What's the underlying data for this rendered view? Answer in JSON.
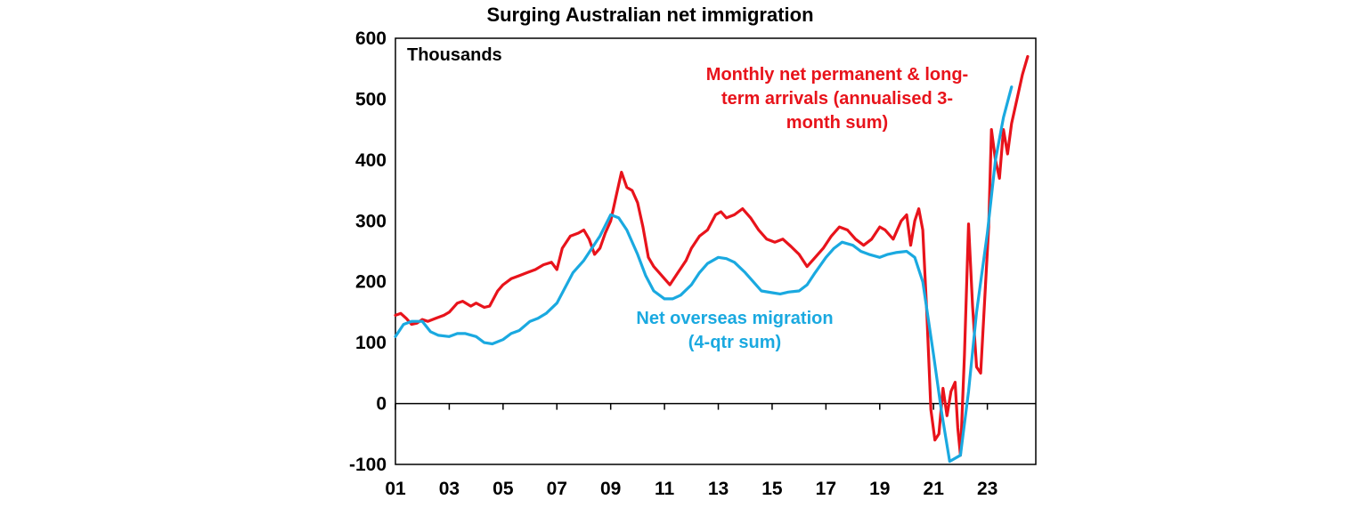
{
  "chart_data": {
    "type": "line",
    "title": "Surging Australian net immigration",
    "unit_label": "Thousands",
    "xlabel": "",
    "ylabel": "",
    "xlim": [
      2001.0,
      2024.8
    ],
    "ylim": [
      -100,
      600
    ],
    "y_ticks": [
      600,
      500,
      400,
      300,
      200,
      100,
      0,
      -100
    ],
    "x_ticks": [
      {
        "year": 2001,
        "label": "01"
      },
      {
        "year": 2003,
        "label": "03"
      },
      {
        "year": 2005,
        "label": "05"
      },
      {
        "year": 2007,
        "label": "07"
      },
      {
        "year": 2009,
        "label": "09"
      },
      {
        "year": 2011,
        "label": "11"
      },
      {
        "year": 2013,
        "label": "13"
      },
      {
        "year": 2015,
        "label": "15"
      },
      {
        "year": 2017,
        "label": "17"
      },
      {
        "year": 2019,
        "label": "19"
      },
      {
        "year": 2021,
        "label": "21"
      },
      {
        "year": 2023,
        "label": "23"
      }
    ],
    "grid": false,
    "series": [
      {
        "name": "Monthly net permanent & long-term arrivals (annualised 3-month sum)",
        "label_lines": [
          "Monthly net permanent & long-",
          "term arrivals (annualised 3-",
          "month sum)"
        ],
        "color": "#e8131b",
        "x": [
          2001.0,
          2001.2,
          2001.4,
          2001.6,
          2001.8,
          2002.0,
          2002.2,
          2002.5,
          2002.8,
          2003.0,
          2003.3,
          2003.5,
          2003.8,
          2004.0,
          2004.3,
          2004.5,
          2004.8,
          2005.0,
          2005.3,
          2005.6,
          2005.9,
          2006.2,
          2006.5,
          2006.8,
          2007.0,
          2007.2,
          2007.5,
          2007.8,
          2008.0,
          2008.2,
          2008.4,
          2008.6,
          2008.8,
          2009.0,
          2009.2,
          2009.4,
          2009.6,
          2009.8,
          2010.0,
          2010.2,
          2010.4,
          2010.6,
          2010.8,
          2011.0,
          2011.2,
          2011.5,
          2011.8,
          2012.0,
          2012.3,
          2012.6,
          2012.9,
          2013.1,
          2013.3,
          2013.6,
          2013.9,
          2014.2,
          2014.5,
          2014.8,
          2015.1,
          2015.4,
          2015.7,
          2016.0,
          2016.3,
          2016.6,
          2016.9,
          2017.2,
          2017.5,
          2017.8,
          2018.1,
          2018.4,
          2018.7,
          2019.0,
          2019.2,
          2019.5,
          2019.8,
          2020.0,
          2020.15,
          2020.3,
          2020.45,
          2020.6,
          2020.75,
          2020.9,
          2021.05,
          2021.2,
          2021.35,
          2021.5,
          2021.65,
          2021.8,
          2021.9,
          2022.0,
          2022.15,
          2022.3,
          2022.45,
          2022.6,
          2022.75,
          2022.9,
          2023.05,
          2023.15,
          2023.3,
          2023.45,
          2023.6,
          2023.75,
          2023.9,
          2024.1,
          2024.3,
          2024.5
        ],
        "y": [
          145,
          148,
          140,
          130,
          132,
          138,
          135,
          140,
          145,
          150,
          165,
          168,
          160,
          165,
          158,
          160,
          185,
          195,
          205,
          210,
          215,
          220,
          228,
          232,
          220,
          255,
          275,
          280,
          285,
          270,
          245,
          255,
          280,
          300,
          340,
          380,
          355,
          350,
          330,
          290,
          240,
          225,
          215,
          205,
          195,
          215,
          235,
          255,
          275,
          285,
          310,
          315,
          305,
          310,
          320,
          305,
          285,
          270,
          265,
          270,
          258,
          245,
          225,
          240,
          255,
          275,
          290,
          285,
          270,
          260,
          270,
          290,
          285,
          270,
          300,
          310,
          260,
          300,
          320,
          285,
          150,
          -10,
          -60,
          -50,
          25,
          -20,
          20,
          35,
          -40,
          -85,
          80,
          295,
          160,
          60,
          50,
          170,
          290,
          450,
          400,
          370,
          450,
          410,
          460,
          500,
          540,
          570
        ]
      },
      {
        "name": "Net overseas migration (4-qtr sum)",
        "label_lines": [
          "Net overseas migration",
          "(4-qtr sum)"
        ],
        "color": "#1aa9e0",
        "x": [
          2001.0,
          2001.3,
          2001.6,
          2002.0,
          2002.3,
          2002.6,
          2003.0,
          2003.3,
          2003.6,
          2004.0,
          2004.3,
          2004.6,
          2005.0,
          2005.3,
          2005.6,
          2006.0,
          2006.3,
          2006.6,
          2007.0,
          2007.3,
          2007.6,
          2008.0,
          2008.3,
          2008.6,
          2009.0,
          2009.3,
          2009.6,
          2010.0,
          2010.3,
          2010.6,
          2011.0,
          2011.3,
          2011.6,
          2012.0,
          2012.3,
          2012.6,
          2013.0,
          2013.3,
          2013.6,
          2014.0,
          2014.3,
          2014.6,
          2015.0,
          2015.3,
          2015.6,
          2016.0,
          2016.3,
          2016.6,
          2017.0,
          2017.3,
          2017.6,
          2018.0,
          2018.3,
          2018.6,
          2019.0,
          2019.3,
          2019.6,
          2020.0,
          2020.3,
          2020.6,
          2021.0,
          2021.3,
          2021.6,
          2022.0,
          2022.3,
          2022.6,
          2023.0,
          2023.3,
          2023.6,
          2023.9
        ],
        "y": [
          110,
          130,
          135,
          135,
          118,
          112,
          110,
          115,
          115,
          110,
          100,
          98,
          105,
          115,
          120,
          135,
          140,
          148,
          165,
          190,
          215,
          235,
          255,
          275,
          310,
          305,
          285,
          245,
          210,
          185,
          172,
          172,
          178,
          195,
          215,
          230,
          240,
          238,
          232,
          215,
          200,
          185,
          182,
          180,
          183,
          185,
          195,
          215,
          240,
          255,
          265,
          260,
          250,
          245,
          240,
          245,
          248,
          250,
          240,
          200,
          80,
          -15,
          -95,
          -85,
          20,
          150,
          280,
          400,
          470,
          520
        ]
      }
    ]
  }
}
